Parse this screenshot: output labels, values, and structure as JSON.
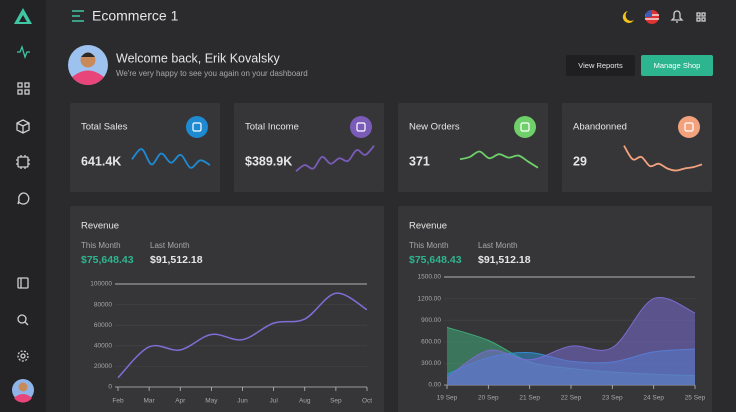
{
  "header": {
    "title": "Ecommerce 1"
  },
  "welcome": {
    "title": "Welcome back, Erik Kovalsky",
    "subtitle": "We're very happy to see you again on your dashboard",
    "buttons": [
      "View Reports",
      "Manage Shop"
    ]
  },
  "stats": [
    {
      "label": "Total Sales",
      "value": "641.4K",
      "color": "#1e8ad2",
      "trend": [
        55,
        85,
        40,
        72,
        45,
        68,
        30,
        52,
        38
      ]
    },
    {
      "label": "Total Income",
      "value": "$389.9K",
      "color": "#7a5cb8",
      "trend": [
        20,
        38,
        28,
        62,
        42,
        58,
        50,
        82,
        68,
        95
      ]
    },
    {
      "label": "New Orders",
      "value": "371",
      "color": "#6fcf6a",
      "trend": [
        55,
        62,
        78,
        58,
        70,
        60,
        66,
        48,
        30
      ]
    },
    {
      "label": "Abandonned",
      "value": "29",
      "color": "#f3a27e",
      "trend": [
        95,
        55,
        62,
        35,
        42,
        28,
        22,
        28,
        32,
        40
      ]
    }
  ],
  "chart_data": [
    {
      "type": "line",
      "title": "Revenue",
      "this_month_label": "This Month",
      "this_month": "$75,648.43",
      "last_month_label": "Last Month",
      "last_month": "$91,512.18",
      "categories": [
        "Feb",
        "Mar",
        "Apr",
        "May",
        "Jun",
        "Jul",
        "Aug",
        "Sep",
        "Oct"
      ],
      "series": [
        {
          "color": "#7d6fd6",
          "values": [
            9000,
            39000,
            36000,
            51000,
            46000,
            62000,
            66000,
            91000,
            75000
          ]
        }
      ],
      "ylim": [
        0,
        100000
      ],
      "yticks": [
        0,
        20000,
        40000,
        60000,
        80000,
        100000
      ],
      "grid": true
    },
    {
      "type": "area",
      "title": "Revenue",
      "this_month_label": "This Month",
      "this_month": "$75,648.43",
      "last_month_label": "Last Month",
      "last_month": "$91,512.18",
      "categories": [
        "19 Sep",
        "20 Sep",
        "21 Sep",
        "22 Sep",
        "23 Sep",
        "24 Sep",
        "25 Sep"
      ],
      "series": [
        {
          "color": "#3faa78",
          "values": [
            800,
            620,
            320,
            230,
            180,
            150,
            130
          ]
        },
        {
          "color": "#2f8fd0",
          "values": [
            150,
            380,
            450,
            330,
            320,
            460,
            500
          ]
        },
        {
          "color": "#7a6bd0",
          "values": [
            100,
            480,
            350,
            540,
            520,
            1200,
            1000
          ]
        }
      ],
      "ylim": [
        0,
        1500
      ],
      "yticks": [
        {
          "value": 0,
          "label": "0.00"
        },
        {
          "value": 300,
          "label": "300.00"
        },
        {
          "value": 600,
          "label": "600.00"
        },
        {
          "value": 900,
          "label": "900.00"
        },
        {
          "value": 1200,
          "label": "1200.00"
        },
        {
          "value": 1500,
          "label": "1500.00"
        }
      ],
      "grid": true
    }
  ]
}
